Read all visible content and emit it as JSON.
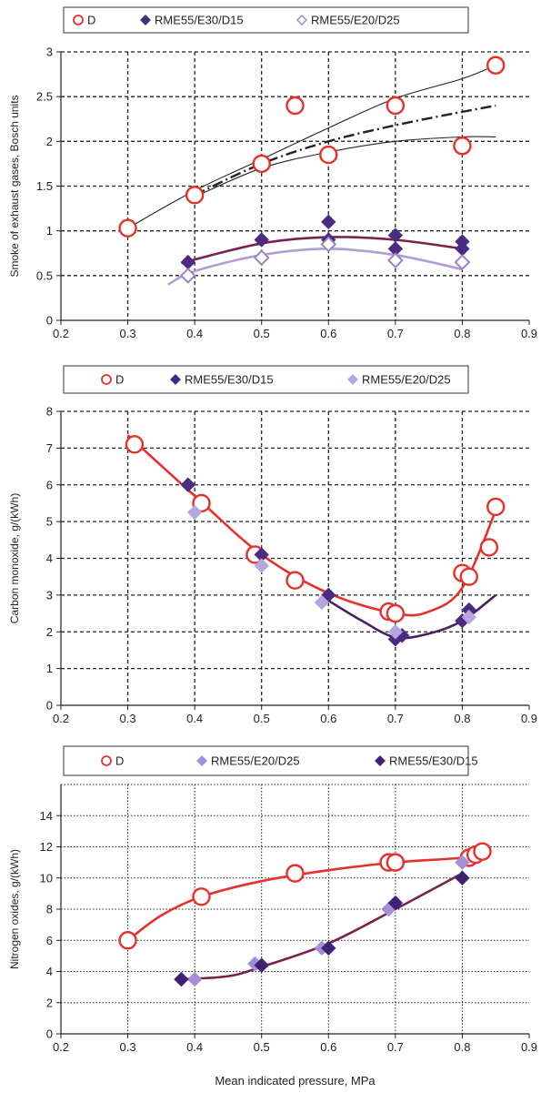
{
  "chart_data": [
    {
      "type": "scatter",
      "legend": [
        "D",
        "RME55/E30/D15",
        "RME55/E20/D25"
      ],
      "ylabel": "Smoke of exhaust gases, Bosch units",
      "xlabel": "",
      "xlim": [
        0.2,
        0.9
      ],
      "ylim": [
        0,
        3
      ],
      "xticks": [
        "0.2",
        "0.3",
        "0.4",
        "0.5",
        "0.6",
        "0.7",
        "0.8",
        "0.9"
      ],
      "yticks": [
        "0",
        "0.5",
        "1",
        "1.5",
        "2",
        "2.5",
        "3"
      ],
      "grid": "dashed",
      "series": [
        {
          "name": "D",
          "color": "#e8302a",
          "marker": "open-circle",
          "points": [
            [
              0.3,
              1.03
            ],
            [
              0.4,
              1.4
            ],
            [
              0.5,
              1.75
            ],
            [
              0.55,
              2.4
            ],
            [
              0.6,
              1.85
            ],
            [
              0.7,
              2.4
            ],
            [
              0.8,
              1.95
            ],
            [
              0.85,
              2.85
            ]
          ]
        },
        {
          "name": "RME55/E30/D15",
          "color": "#4b2a82",
          "marker": "filled-diamond",
          "points": [
            [
              0.39,
              0.65
            ],
            [
              0.5,
              0.9
            ],
            [
              0.6,
              1.1
            ],
            [
              0.6,
              0.9
            ],
            [
              0.7,
              0.95
            ],
            [
              0.7,
              0.8
            ],
            [
              0.8,
              0.88
            ],
            [
              0.8,
              0.8
            ]
          ]
        },
        {
          "name": "RME55/E20/D25",
          "color": "#9a84c8",
          "marker": "open-diamond",
          "points": [
            [
              0.39,
              0.5
            ],
            [
              0.5,
              0.7
            ],
            [
              0.6,
              0.85
            ],
            [
              0.7,
              0.67
            ],
            [
              0.8,
              0.65
            ]
          ]
        }
      ],
      "curves": [
        {
          "color": "#222222",
          "style": "solid",
          "points": [
            [
              0.3,
              1.03
            ],
            [
              0.4,
              1.45
            ],
            [
              0.5,
              1.8
            ],
            [
              0.6,
              2.15
            ],
            [
              0.7,
              2.48
            ],
            [
              0.8,
              2.7
            ],
            [
              0.85,
              2.85
            ]
          ]
        },
        {
          "color": "#222222",
          "style": "dash-dot",
          "points": [
            [
              0.4,
              1.4
            ],
            [
              0.5,
              1.75
            ],
            [
              0.6,
              2.0
            ],
            [
              0.7,
              2.18
            ],
            [
              0.8,
              2.33
            ],
            [
              0.85,
              2.4
            ]
          ]
        },
        {
          "color": "#222222",
          "style": "solid",
          "points": [
            [
              0.4,
              1.38
            ],
            [
              0.5,
              1.7
            ],
            [
              0.6,
              1.88
            ],
            [
              0.7,
              2.0
            ],
            [
              0.8,
              2.05
            ],
            [
              0.85,
              2.05
            ]
          ]
        },
        {
          "color": "#7a2150",
          "style": "solid",
          "points": [
            [
              0.38,
              0.64
            ],
            [
              0.5,
              0.86
            ],
            [
              0.6,
              0.93
            ],
            [
              0.7,
              0.9
            ],
            [
              0.8,
              0.8
            ]
          ]
        },
        {
          "color": "#b49bd6",
          "style": "solid",
          "points": [
            [
              0.36,
              0.4
            ],
            [
              0.4,
              0.55
            ],
            [
              0.5,
              0.73
            ],
            [
              0.6,
              0.8
            ],
            [
              0.7,
              0.73
            ],
            [
              0.8,
              0.57
            ]
          ]
        }
      ]
    },
    {
      "type": "scatter",
      "legend": [
        "D",
        "RME55/E30/D15",
        "RME55/E20/D25"
      ],
      "ylabel": "Carbon monoxide, g/(kWh)",
      "xlabel": "",
      "xlim": [
        0.2,
        0.9
      ],
      "ylim": [
        0,
        8
      ],
      "xticks": [
        "0.2",
        "0.3",
        "0.4",
        "0.5",
        "0.6",
        "0.7",
        "0.8",
        "0.9"
      ],
      "yticks": [
        "0",
        "1",
        "2",
        "3",
        "4",
        "5",
        "6",
        "7",
        "8"
      ],
      "grid": "dashed",
      "series": [
        {
          "name": "D",
          "color": "#e8302a",
          "marker": "open-circle",
          "points": [
            [
              0.31,
              7.1
            ],
            [
              0.41,
              5.5
            ],
            [
              0.49,
              4.1
            ],
            [
              0.55,
              3.4
            ],
            [
              0.69,
              2.55
            ],
            [
              0.7,
              2.5
            ],
            [
              0.8,
              3.6
            ],
            [
              0.81,
              3.5
            ],
            [
              0.84,
              4.3
            ],
            [
              0.85,
              5.4
            ]
          ]
        },
        {
          "name": "RME55/E30/D15",
          "color": "#4b2a82",
          "marker": "filled-diamond",
          "points": [
            [
              0.39,
              6.0
            ],
            [
              0.5,
              4.1
            ],
            [
              0.6,
              3.0
            ],
            [
              0.7,
              1.8
            ],
            [
              0.71,
              1.9
            ],
            [
              0.8,
              2.3
            ],
            [
              0.81,
              2.6
            ]
          ]
        },
        {
          "name": "RME55/E20/D25",
          "color": "#b7a6de",
          "marker": "filled-diamond",
          "points": [
            [
              0.4,
              5.25
            ],
            [
              0.5,
              3.8
            ],
            [
              0.59,
              2.8
            ],
            [
              0.7,
              2.0
            ],
            [
              0.81,
              2.4
            ]
          ]
        }
      ],
      "curves": [
        {
          "color": "#e8302a",
          "style": "solid",
          "points": [
            [
              0.3,
              7.35
            ],
            [
              0.4,
              5.7
            ],
            [
              0.5,
              4.1
            ],
            [
              0.6,
              3.05
            ],
            [
              0.7,
              2.5
            ],
            [
              0.75,
              2.55
            ],
            [
              0.8,
              3.2
            ],
            [
              0.85,
              5.3
            ]
          ]
        },
        {
          "color": "#4a2060",
          "style": "solid",
          "points": [
            [
              0.6,
              2.85
            ],
            [
              0.65,
              2.3
            ],
            [
              0.7,
              1.85
            ],
            [
              0.75,
              1.95
            ],
            [
              0.8,
              2.3
            ],
            [
              0.85,
              3.0
            ]
          ]
        }
      ]
    },
    {
      "type": "scatter",
      "legend": [
        "D",
        "RME55/E20/D25",
        "RME55/E30/D15"
      ],
      "ylabel": "Nitrogen oxides, g/(kWh)",
      "xlabel": "Mean indicated pressure, MPa",
      "xlim": [
        0.2,
        0.9
      ],
      "ylim": [
        0,
        16
      ],
      "xticks": [
        "0.2",
        "0.3",
        "0.4",
        "0.5",
        "0.6",
        "0.7",
        "0.8",
        "0.9"
      ],
      "yticks": [
        "0",
        "2",
        "4",
        "6",
        "8",
        "10",
        "12",
        "14"
      ],
      "grid": "dotted",
      "series": [
        {
          "name": "D",
          "color": "#e8302a",
          "marker": "open-circle",
          "points": [
            [
              0.3,
              6.0
            ],
            [
              0.41,
              8.8
            ],
            [
              0.55,
              10.3
            ],
            [
              0.69,
              11.0
            ],
            [
              0.7,
              11.0
            ],
            [
              0.81,
              11.3
            ],
            [
              0.82,
              11.5
            ],
            [
              0.83,
              11.7
            ]
          ]
        },
        {
          "name": "RME55/E20/D25",
          "color": "#a58ed6",
          "marker": "filled-diamond",
          "points": [
            [
              0.4,
              3.5
            ],
            [
              0.49,
              4.5
            ],
            [
              0.59,
              5.5
            ],
            [
              0.69,
              8.0
            ],
            [
              0.8,
              11.0
            ]
          ]
        },
        {
          "name": "RME55/E30/D15",
          "color": "#3f2274",
          "marker": "filled-diamond",
          "points": [
            [
              0.38,
              3.5
            ],
            [
              0.5,
              4.4
            ],
            [
              0.6,
              5.5
            ],
            [
              0.7,
              8.4
            ],
            [
              0.8,
              10.0
            ]
          ]
        }
      ],
      "curves": [
        {
          "color": "#e8302a",
          "style": "solid",
          "points": [
            [
              0.3,
              6.0
            ],
            [
              0.35,
              7.6
            ],
            [
              0.41,
              8.8
            ],
            [
              0.5,
              9.8
            ],
            [
              0.6,
              10.5
            ],
            [
              0.7,
              11.0
            ],
            [
              0.8,
              11.3
            ],
            [
              0.83,
              11.6
            ]
          ]
        },
        {
          "color": "#7a2150",
          "style": "solid",
          "points": [
            [
              0.38,
              3.5
            ],
            [
              0.45,
              3.7
            ],
            [
              0.5,
              4.3
            ],
            [
              0.6,
              5.8
            ],
            [
              0.7,
              8.0
            ],
            [
              0.8,
              10.3
            ]
          ]
        }
      ]
    }
  ]
}
